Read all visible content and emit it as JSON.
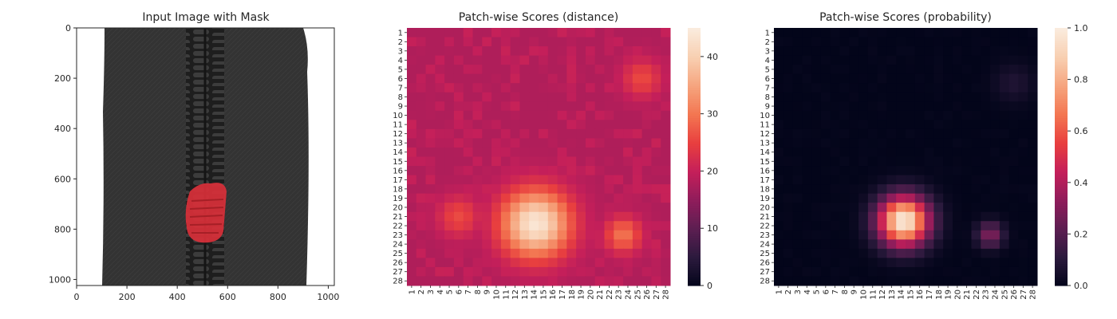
{
  "colormap": {
    "name": "rocket",
    "stops": [
      "#03051a",
      "#2b1a3d",
      "#5c1e51",
      "#8f1d5b",
      "#c41f5a",
      "#e83f3f",
      "#f37651",
      "#f6a47e",
      "#f8cfb1",
      "#faebdd"
    ]
  },
  "chart_data": [
    {
      "type": "image",
      "title": "Input Image with Mask",
      "xlim": [
        0,
        1024
      ],
      "ylim": [
        1024,
        0
      ],
      "x_ticks": [
        "0",
        "200",
        "400",
        "600",
        "800",
        "1000"
      ],
      "y_ticks": [
        "0",
        "200",
        "400",
        "600",
        "800",
        "1000"
      ],
      "content": "zipper",
      "colors": {
        "fabric": "#333333",
        "teeth": "#2a2a2a",
        "mask": "#d9303a"
      },
      "mask_region": {
        "x_range": [
          430,
          580
        ],
        "y_range": [
          615,
          850
        ]
      }
    },
    {
      "type": "heatmap",
      "title": "Patch-wise Scores (distance)",
      "rows": 28,
      "cols": 28,
      "row_labels": [
        "1",
        "2",
        "3",
        "4",
        "5",
        "6",
        "7",
        "8",
        "9",
        "10",
        "11",
        "12",
        "13",
        "14",
        "15",
        "16",
        "17",
        "18",
        "19",
        "20",
        "21",
        "22",
        "23",
        "24",
        "25",
        "26",
        "27",
        "28"
      ],
      "col_labels": [
        "1",
        "2",
        "3",
        "4",
        "5",
        "6",
        "7",
        "8",
        "9",
        "10",
        "11",
        "12",
        "13",
        "14",
        "15",
        "16",
        "17",
        "18",
        "19",
        "20",
        "21",
        "22",
        "23",
        "24",
        "25",
        "26",
        "27",
        "28"
      ],
      "colorbar": {
        "min": 0,
        "max": 45,
        "ticks": [
          "0",
          "10",
          "20",
          "30",
          "40"
        ]
      },
      "base_value": 18,
      "hotspots": [
        {
          "row": 21.8,
          "col": 14.2,
          "peak": 44,
          "radius": 2.6
        },
        {
          "row": 23,
          "col": 23.5,
          "peak": 30,
          "radius": 1.4
        },
        {
          "row": 21,
          "col": 6,
          "peak": 26,
          "radius": 1.6
        },
        {
          "row": 6,
          "col": 25.5,
          "peak": 26,
          "radius": 1.5
        }
      ]
    },
    {
      "type": "heatmap",
      "title": "Patch-wise Scores (probability)",
      "rows": 28,
      "cols": 28,
      "row_labels": [
        "1",
        "2",
        "3",
        "4",
        "5",
        "6",
        "7",
        "8",
        "9",
        "10",
        "11",
        "12",
        "13",
        "14",
        "15",
        "16",
        "17",
        "18",
        "19",
        "20",
        "21",
        "22",
        "23",
        "24",
        "25",
        "26",
        "27",
        "28"
      ],
      "col_labels": [
        "1",
        "2",
        "3",
        "4",
        "5",
        "6",
        "7",
        "8",
        "9",
        "10",
        "11",
        "12",
        "13",
        "14",
        "15",
        "16",
        "17",
        "18",
        "19",
        "20",
        "21",
        "22",
        "23",
        "24",
        "25",
        "26",
        "27",
        "28"
      ],
      "colorbar": {
        "min": 0,
        "max": 1,
        "ticks": [
          "0.0",
          "0.2",
          "0.4",
          "0.6",
          "0.8",
          "1.0"
        ]
      },
      "base_value": 0.0,
      "hotspots": [
        {
          "row": 21.5,
          "col": 14.3,
          "peak": 1.0,
          "radius": 1.9
        },
        {
          "row": 23,
          "col": 23.5,
          "peak": 0.3,
          "radius": 1.0
        },
        {
          "row": 6.5,
          "col": 26,
          "peak": 0.08,
          "radius": 1.5
        }
      ]
    }
  ]
}
